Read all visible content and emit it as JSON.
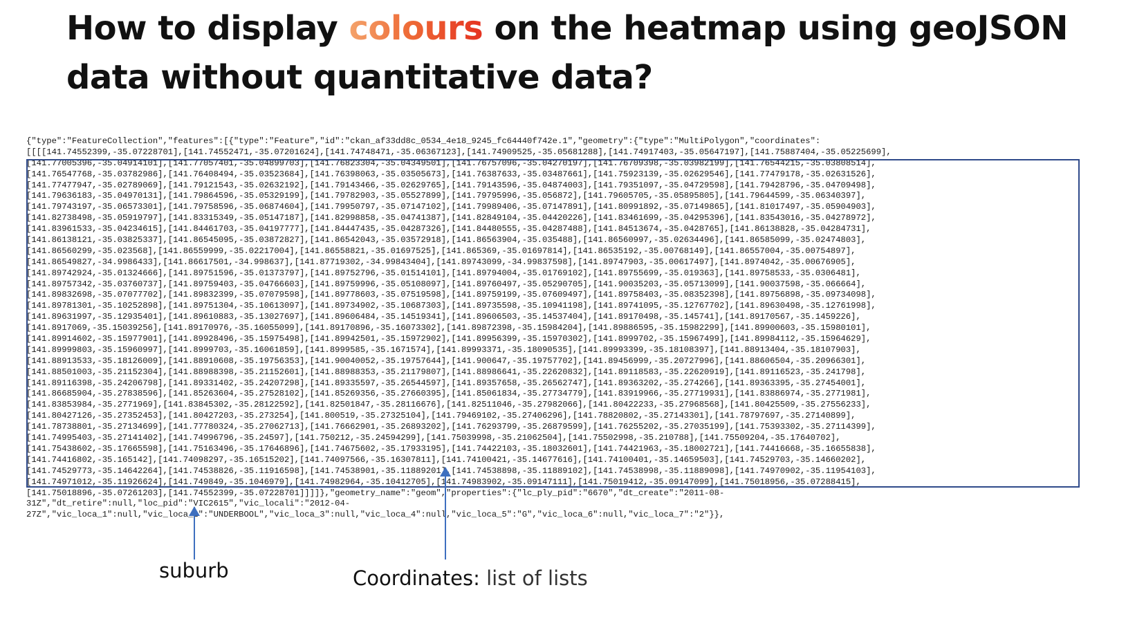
{
  "slide": {
    "title_before": "How to display ",
    "title_highlight": "colours",
    "title_after": " on the heatmap using geoJSON data without quantitative data?"
  },
  "geojson_lines": [
    "{\"type\":\"FeatureCollection\",\"features\":[{\"type\":\"Feature\",\"id\":\"ckan_af33dd8c_0534_4e18_9245_fc64440f742e.1\",\"geometry\":{\"type\":\"MultiPolygon\",\"coordinates\":",
    "[[[[141.74552399,-35.07228701],[141.74552471,-35.07201624],[141.74748471,-35.06367123],[141.74909525,-35.05681288],[141.74917403,-35.05647197],[141.75887404,-35.05225699],",
    "[141.77005396,-35.04914101],[141.77057401,-35.04899703],[141.76823304,-35.04349501],[141.76757096,-35.04270197],[141.76709398,-35.03982199],[141.76544215,-35.03808514],",
    "[141.76547768,-35.03782986],[141.76408494,-35.03523684],[141.76398063,-35.03505673],[141.76387633,-35.03487661],[141.75923139,-35.02629546],[141.77479178,-35.02631526],",
    "[141.77477947,-35.02789069],[141.79121543,-35.02632192],[141.79143466,-35.02629765],[141.79143596,-35.04874003],[141.79351097,-35.04729598],[141.79428796,-35.04709498],",
    "[141.79636183,-35.04970131],[141.79864596,-35.05329199],[141.79782903,-35.05527899],[141.79795996,-35.056872],[141.79605705,-35.05895805],[141.79644599,-35.06340397],",
    "[141.79743197,-35.06573301],[141.79758596,-35.06874604],[141.79950797,-35.07147102],[141.79989406,-35.07147891],[141.80991892,-35.07149865],[141.81017497,-35.05904903],",
    "[141.82738498,-35.05919797],[141.83315349,-35.05147187],[141.82998858,-35.04741387],[141.82849104,-35.04420226],[141.83461699,-35.04295396],[141.83543016,-35.04278972],",
    "[141.83961533,-35.04234615],[141.84461703,-35.04197777],[141.84447435,-35.04287326],[141.84480555,-35.04287488],[141.84513674,-35.0428765],[141.86138828,-35.04284731],",
    "[141.86138121,-35.03825337],[141.86545095,-35.03872827],[141.86542043,-35.03572918],[141.86563904,-35.035488],[141.86560997,-35.02634496],[141.86585099,-35.02474803],",
    "[141.86560299,-35.023568],[141.86559999,-35.02217004],[141.86558821,-35.01697525],[141.865369,-35.01697814],[141.86535192,-35.00768149],[141.86557004,-35.00754897],",
    "[141.86549827,-34.9986433],[141.86617501,-34.998637],[141.87719302,-34.99843404],[141.89743099,-34.99837598],[141.89747903,-35.00617497],[141.8974042,-35.00676905],",
    "[141.89742924,-35.01324666],[141.89751596,-35.01373797],[141.89752796,-35.01514101],[141.89794004,-35.01769102],[141.89755699,-35.019363],[141.89758533,-35.0306481],",
    "[141.89757342,-35.03760737],[141.89759403,-35.04766603],[141.89759996,-35.05108097],[141.89760497,-35.05290705],[141.90035203,-35.05713099],[141.90037598,-35.066664],",
    "[141.89832698,-35.07077702],[141.89832399,-35.07079598],[141.89778603,-35.07519598],[141.89759199,-35.07609497],[141.89758403,-35.08352398],[141.89756898,-35.09734098],",
    "[141.89781301,-35.10252898],[141.89751304,-35.10613097],[141.89734902,-35.10687303],[141.89735598,-35.10941198],[141.89741095,-35.12767702],[141.89630498,-35.12761998],",
    "[141.89631997,-35.12935401],[141.89610883,-35.13027697],[141.89606484,-35.14519341],[141.89606503,-35.14537404],[141.89170498,-35.145741],[141.89170567,-35.1459226],",
    "[141.8917069,-35.15039256],[141.89170976,-35.16055099],[141.89170896,-35.16073302],[141.89872398,-35.15984204],[141.89886595,-35.15982299],[141.89900603,-35.15980101],",
    "[141.89914602,-35.15977901],[141.89928496,-35.15975498],[141.89942501,-35.15972902],[141.89956399,-35.15970302],[141.8999702,-35.15967499],[141.89984112,-35.15964629],",
    "[141.89999803,-35.15960997],[141.8999703,-35.16061859],[141.8999585,-35.1671574],[141.89993371,-35.18090535],[141.89993399,-35.18108397],[141.88913404,-35.18107903],",
    "[141.88913533,-35.18126009],[141.88910608,-35.19756353],[141.90040052,-35.19757644],[141.900647,-35.19757702],[141.89456999,-35.20727996],[141.88606504,-35.20966301],",
    "[141.88501003,-35.21152304],[141.88988398,-35.21152601],[141.88988353,-35.21179807],[141.88986641,-35.22620832],[141.89118583,-35.22620919],[141.89116523,-35.241798],",
    "[141.89116398,-35.24206798],[141.89331402,-35.24207298],[141.89335597,-35.26544597],[141.89357658,-35.26562747],[141.89363202,-35.274266],[141.89363395,-35.27454001],",
    "[141.86685904,-35.27838596],[141.85263604,-35.27528102],[141.85269356,-35.27660395],[141.85061834,-35.27734779],[141.83919966,-35.27719931],[141.83886974,-35.2771981],",
    "[141.83853984,-35.2771969],[141.83845302,-35.28122592],[141.82501847,-35.28116676],[141.82511046,-35.27982066],[141.80422233,-35.27968568],[141.80425509,-35.27556233],",
    "[141.80427126,-35.27352453],[141.80427203,-35.273254],[141.800519,-35.27325104],[141.79469102,-35.27406296],[141.78820802,-35.27143301],[141.78797697,-35.27140899],",
    "[141.78738801,-35.27134699],[141.77780324,-35.27062713],[141.76662901,-35.26893202],[141.76293799,-35.26879599],[141.76255202,-35.27035199],[141.75393302,-35.27114399],",
    "[141.74995403,-35.27141402],[141.74996796,-35.24597],[141.750212,-35.24594299],[141.75039998,-35.21062504],[141.75502998,-35.210788],[141.75509204,-35.17640702],",
    "[141.75438602,-35.17665598],[141.75163496,-35.17646896],[141.74675602,-35.17933195],[141.74422103,-35.18032601],[141.74421963,-35.18002721],[141.74416668,-35.16655838],",
    "[141.74416802,-35.165142],[141.74098297,-35.16515202],[141.74097566,-35.16307811],[141.74100421,-35.14677616],[141.74100401,-35.14659503],[141.74529703,-35.14660202],",
    "[141.74529773,-35.14642264],[141.74538826,-35.11916598],[141.74538901,-35.11889201],[141.74538898,-35.11889102],[141.74538998,-35.11889098],[141.74970902,-35.11954103],",
    "[141.74971012,-35.11926624],[141.749849,-35.1046979],[141.74982964,-35.10412705],[141.74983902,-35.09147111],[141.75019412,-35.09147099],[141.75018956,-35.07288415],",
    "[141.75018896,-35.07261203],[141.74552399,-35.07228701]]]]},\"geometry_name\":\"geom\",\"properties\":{\"lc_ply_pid\":\"6670\",\"dt_create\":\"2011-08-",
    "31Z\",\"dt_retire\":null,\"loc_pid\":\"VIC2615\",\"vic_locali\":\"2012-04-",
    "27Z\",\"vic_loca_1\":null,\"vic_loca_2\":\"UNDERBOOL\",\"vic_loca_3\":null,\"vic_loca_4\":null,\"vic_loca_5\":\"G\",\"vic_loca_6\":null,\"vic_loca_7\":\"2\"}},"
  ],
  "annotations": {
    "suburb_label": "suburb",
    "coords_label_bold": "Coordinates:",
    "coords_label_rest": " list of lists"
  },
  "colors": {
    "frame": "#2f4a8a",
    "arrow": "#3e6fbf",
    "highlight_start": "#f4a46c",
    "highlight_end": "#e53220"
  }
}
